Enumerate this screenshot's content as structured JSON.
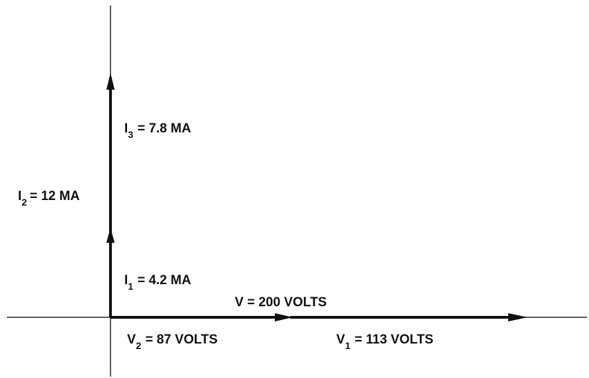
{
  "labels": [
    {
      "symbol": "I",
      "subscript": "3",
      "text": "= 7.8 MA"
    },
    {
      "symbol": "I",
      "subscript": "2",
      "text": "= 12 MA"
    },
    {
      "symbol": "I",
      "subscript": "1",
      "text": "= 4.2 MA"
    },
    {
      "text": "V = 200 VOLTS"
    },
    {
      "symbol": "V",
      "subscript": "2",
      "text": "= 87 VOLTS"
    },
    {
      "symbol": "V",
      "subscript": "1",
      "text": "= 113 VOLTS"
    }
  ]
}
